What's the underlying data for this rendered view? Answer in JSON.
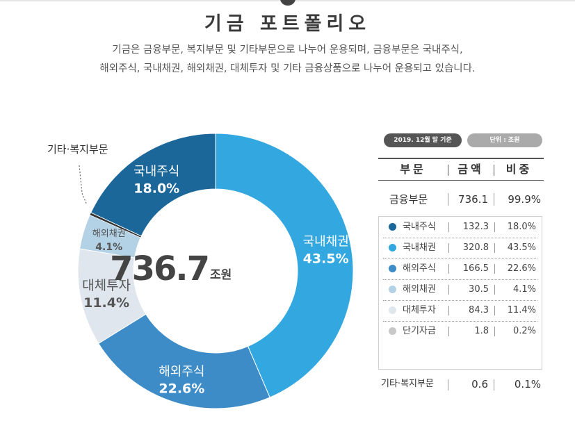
{
  "header": {
    "title": "기금 포트폴리오",
    "desc_line1": "기금은 금융부문, 복지부문 및 기타부문으로 나누어 운용되며, 금융부문은 국내주식,",
    "desc_line2": "해외주식, 국내채권, 해외채권, 대체투자 및 기타 금융상품으로 나누어 운용되고 있습니다."
  },
  "center": {
    "value": "736.7",
    "unit": "조원"
  },
  "outside_label": "기타·복지부문",
  "colors": {
    "domestic_stock": "#1b6799",
    "domestic_bond": "#33a8e0",
    "foreign_stock": "#3d8cc8",
    "foreign_bond": "#b4d2e6",
    "alternative": "#dfe6ee",
    "short_term": "#c8c8c8",
    "other": "#333333"
  },
  "chart_data": {
    "type": "pie",
    "total": 736.7,
    "unit": "조원",
    "slices": [
      {
        "name": "국내채권",
        "value": 43.5,
        "label": "43.5%"
      },
      {
        "name": "해외주식",
        "value": 22.6,
        "label": "22.6%"
      },
      {
        "name": "대체투자",
        "value": 11.4,
        "label": "11.4%"
      },
      {
        "name": "해외채권",
        "value": 4.1,
        "label": "4.1%"
      },
      {
        "name": "기타·복지부문",
        "value": 0.3,
        "label": ""
      },
      {
        "name": "국내주식",
        "value": 18.0,
        "label": "18.0%"
      }
    ]
  },
  "table": {
    "badge_date": "2019. 12월 말 기준",
    "badge_unit": "단위 : 조원",
    "headers": [
      "부문",
      "금액",
      "비중"
    ],
    "financial": {
      "name": "금융부문",
      "amount": "736.1",
      "share": "99.9%"
    },
    "rows": [
      {
        "name": "국내주식",
        "amount": "132.3",
        "share": "18.0%",
        "color": "#1b6799"
      },
      {
        "name": "국내채권",
        "amount": "320.8",
        "share": "43.5%",
        "color": "#33a8e0"
      },
      {
        "name": "해외주식",
        "amount": "166.5",
        "share": "22.6%",
        "color": "#3d8cc8"
      },
      {
        "name": "해외채권",
        "amount": "30.5",
        "share": "4.1%",
        "color": "#b4d2e6"
      },
      {
        "name": "대체투자",
        "amount": "84.3",
        "share": "11.4%",
        "color": "#dfe6ee"
      },
      {
        "name": "단기자금",
        "amount": "1.8",
        "share": "0.2%",
        "color": "#c8c8c8"
      }
    ],
    "other": {
      "name": "기타·복지부문",
      "amount": "0.6",
      "share": "0.1%"
    }
  }
}
